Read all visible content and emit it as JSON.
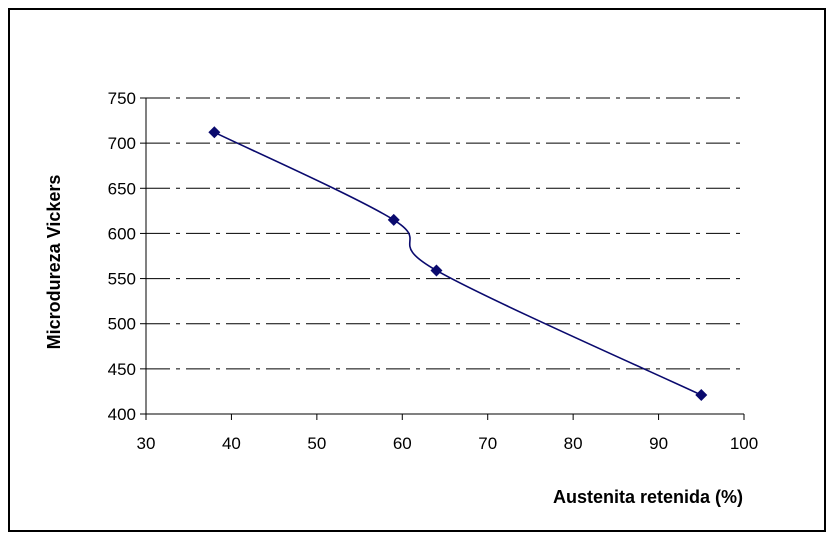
{
  "chart_data": {
    "type": "scatter",
    "title": "",
    "xlabel": "Austenita retenida (%)",
    "ylabel": "Microdureza Vickers",
    "xlim": [
      30,
      100
    ],
    "ylim": [
      400,
      750
    ],
    "xticks": [
      30,
      40,
      50,
      60,
      70,
      80,
      90,
      100
    ],
    "yticks": [
      400,
      450,
      500,
      550,
      600,
      650,
      700,
      750
    ],
    "grid": "horizontal-dashed",
    "series": [
      {
        "color": "#0a0a6e",
        "marker": "diamond",
        "smooth_line": true,
        "x": [
          38,
          59,
          64,
          95
        ],
        "y": [
          712,
          615,
          559,
          421
        ]
      }
    ]
  }
}
